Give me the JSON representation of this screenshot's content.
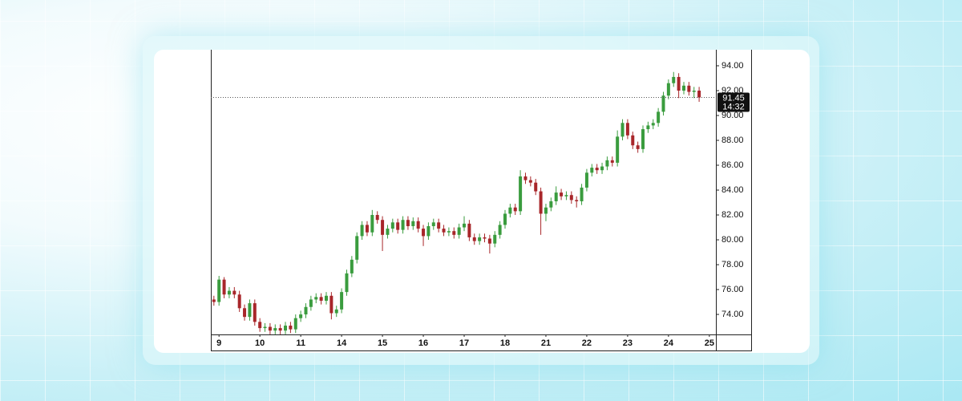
{
  "chart_data": {
    "type": "candlestick",
    "up_color": "#3a9c3e",
    "down_color": "#a8262a",
    "x": [
      -0.125,
      0,
      0.125,
      0.25,
      0.375,
      0.5,
      0.625,
      0.75,
      0.875,
      1,
      1.125,
      1.25,
      1.375,
      1.5,
      1.625,
      1.75,
      1.875,
      2,
      2.125,
      2.25,
      2.375,
      2.5,
      2.625,
      2.75,
      2.875,
      3,
      3.125,
      3.25,
      3.375,
      3.5,
      3.625,
      3.75,
      3.875,
      4,
      4.125,
      4.25,
      4.375,
      4.5,
      4.625,
      4.75,
      4.875,
      5,
      5.125,
      5.25,
      5.375,
      5.5,
      5.625,
      5.75,
      5.875,
      6,
      6.125,
      6.25,
      6.375,
      6.5,
      6.625,
      6.75,
      6.875,
      7,
      7.125,
      7.25,
      7.375,
      7.5,
      7.625,
      7.75,
      7.875,
      8,
      8.125,
      8.25,
      8.375,
      8.5,
      8.625,
      8.75,
      8.875,
      9,
      9.125,
      9.25,
      9.375,
      9.5,
      9.625,
      9.75,
      9.875,
      10,
      10.125,
      10.25,
      10.375,
      10.5,
      10.625,
      10.75,
      10.875,
      11,
      11.125,
      11.25,
      11.375,
      11.5,
      11.625,
      11.75
    ],
    "open": [
      75.2,
      75.0,
      76.8,
      75.6,
      75.9,
      75.6,
      74.5,
      73.8,
      74.9,
      73.4,
      72.9,
      73.0,
      72.7,
      72.9,
      72.7,
      73.1,
      72.8,
      73.7,
      74.0,
      74.6,
      75.2,
      75.4,
      75.1,
      75.5,
      74.1,
      74.4,
      75.8,
      77.3,
      78.4,
      80.3,
      81.2,
      80.6,
      82.0,
      81.6,
      80.4,
      80.9,
      81.4,
      80.8,
      81.6,
      81.1,
      81.5,
      80.9,
      80.3,
      81.1,
      81.4,
      80.9,
      80.6,
      80.7,
      80.4,
      81.0,
      81.3,
      80.2,
      79.9,
      80.2,
      80.1,
      79.7,
      80.4,
      81.2,
      82.1,
      82.6,
      82.3,
      85.1,
      84.8,
      84.6,
      83.9,
      82.1,
      82.6,
      83.1,
      83.8,
      83.5,
      83.6,
      83.2,
      83.1,
      84.2,
      85.4,
      85.8,
      85.6,
      85.9,
      86.4,
      86.2,
      88.3,
      89.4,
      88.4,
      87.6,
      87.3,
      88.9,
      89.2,
      89.4,
      90.3,
      91.6,
      92.6,
      93.1,
      92.0,
      92.4,
      91.9,
      92.0
    ],
    "high": [
      75.5,
      77.1,
      77.0,
      76.2,
      76.2,
      75.9,
      74.8,
      75.2,
      75.2,
      73.7,
      73.3,
      73.3,
      73.2,
      73.2,
      73.4,
      73.4,
      74.0,
      74.3,
      74.9,
      75.5,
      75.7,
      75.7,
      75.8,
      75.8,
      74.7,
      76.1,
      77.6,
      78.7,
      80.6,
      81.5,
      81.5,
      82.4,
      82.3,
      81.9,
      81.2,
      81.7,
      81.7,
      81.9,
      81.9,
      81.8,
      81.8,
      81.2,
      81.4,
      81.7,
      81.7,
      81.2,
      81.0,
      81.0,
      81.3,
      81.9,
      81.6,
      80.5,
      80.5,
      80.5,
      80.4,
      80.7,
      81.5,
      82.4,
      82.9,
      82.9,
      85.6,
      85.4,
      85.1,
      84.9,
      84.2,
      82.9,
      83.4,
      84.3,
      84.1,
      83.9,
      83.9,
      83.5,
      84.5,
      85.7,
      86.1,
      86.1,
      86.2,
      86.7,
      86.7,
      88.8,
      89.7,
      89.7,
      88.7,
      87.9,
      89.2,
      89.5,
      89.7,
      90.6,
      91.9,
      92.9,
      93.5,
      93.4,
      92.7,
      92.7,
      92.3,
      92.3
    ],
    "low": [
      74.7,
      74.7,
      75.3,
      75.3,
      75.3,
      74.2,
      73.5,
      73.5,
      73.1,
      72.6,
      72.6,
      72.4,
      72.4,
      72.4,
      72.4,
      72.5,
      72.5,
      73.4,
      73.7,
      74.3,
      74.9,
      74.8,
      74.8,
      73.6,
      73.8,
      74.1,
      75.5,
      77.0,
      78.1,
      80.0,
      80.3,
      80.3,
      81.3,
      79.1,
      80.1,
      80.6,
      80.5,
      80.5,
      80.8,
      80.8,
      80.6,
      79.5,
      80.0,
      80.8,
      80.6,
      80.3,
      80.3,
      80.1,
      80.1,
      80.7,
      79.9,
      79.6,
      79.6,
      79.8,
      78.9,
      79.4,
      80.1,
      80.9,
      81.8,
      82.0,
      82.0,
      84.5,
      84.3,
      83.6,
      80.4,
      81.5,
      82.3,
      82.8,
      83.2,
      83.2,
      82.9,
      82.6,
      82.8,
      83.9,
      85.1,
      85.3,
      85.3,
      85.6,
      85.9,
      85.9,
      88.0,
      88.1,
      87.3,
      87.0,
      87.0,
      88.6,
      88.9,
      89.1,
      90.0,
      91.3,
      92.3,
      91.4,
      91.7,
      91.6,
      91.4,
      91.1
    ],
    "close": [
      75.0,
      76.8,
      75.6,
      75.9,
      75.6,
      74.5,
      73.8,
      74.9,
      73.4,
      72.9,
      73.0,
      72.7,
      72.9,
      72.7,
      73.1,
      72.8,
      73.7,
      74.0,
      74.6,
      75.2,
      75.4,
      75.1,
      75.5,
      74.1,
      74.4,
      75.8,
      77.3,
      78.4,
      80.3,
      81.2,
      80.6,
      82.0,
      81.6,
      80.4,
      80.9,
      81.4,
      80.8,
      81.6,
      81.1,
      81.5,
      80.9,
      80.3,
      81.1,
      81.4,
      80.9,
      80.6,
      80.7,
      80.4,
      81.0,
      81.3,
      80.2,
      79.9,
      80.2,
      80.1,
      79.7,
      80.4,
      81.2,
      82.1,
      82.6,
      82.3,
      85.1,
      84.8,
      84.6,
      83.9,
      82.1,
      82.6,
      83.1,
      83.8,
      83.5,
      83.6,
      83.2,
      83.1,
      84.2,
      85.4,
      85.8,
      85.6,
      85.9,
      86.4,
      86.2,
      88.3,
      89.4,
      88.4,
      87.6,
      87.3,
      88.9,
      89.2,
      89.4,
      90.3,
      91.6,
      92.6,
      93.1,
      92.0,
      92.4,
      91.9,
      92.0,
      91.45
    ],
    "xlim": [
      -0.2,
      12.16
    ],
    "xticks": [
      {
        "value": 0,
        "label": "9"
      },
      {
        "value": 1,
        "label": "10"
      },
      {
        "value": 2,
        "label": "11"
      },
      {
        "value": 3,
        "label": "14"
      },
      {
        "value": 4,
        "label": "15"
      },
      {
        "value": 5,
        "label": "16"
      },
      {
        "value": 6,
        "label": "17"
      },
      {
        "value": 7,
        "label": "18"
      },
      {
        "value": 8,
        "label": "21"
      },
      {
        "value": 9,
        "label": "22"
      },
      {
        "value": 10,
        "label": "23"
      },
      {
        "value": 11,
        "label": "24"
      },
      {
        "value": 12,
        "label": "25"
      }
    ],
    "ylim": [
      72.39,
      95.29
    ],
    "yticks": [
      {
        "value": 74,
        "label": "74.00"
      },
      {
        "value": 76,
        "label": "76.00"
      },
      {
        "value": 78,
        "label": "78.00"
      },
      {
        "value": 80,
        "label": "80.00"
      },
      {
        "value": 82,
        "label": "82.00"
      },
      {
        "value": 84,
        "label": "84.00"
      },
      {
        "value": 86,
        "label": "86.00"
      },
      {
        "value": 88,
        "label": "88.00"
      },
      {
        "value": 90,
        "label": "90.00"
      },
      {
        "value": 92,
        "label": "92.00"
      },
      {
        "value": 94,
        "label": "94.00"
      }
    ],
    "last_price": {
      "value": 91.45,
      "time": "14:32"
    }
  }
}
